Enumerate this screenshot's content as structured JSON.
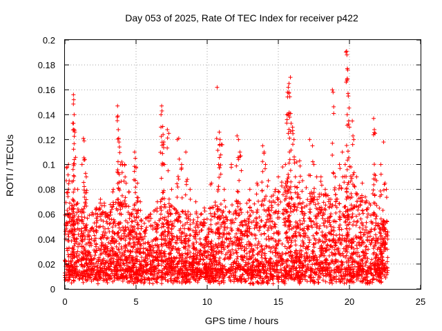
{
  "chart_data": {
    "type": "scatter",
    "title": "Day 053 of 2025, Rate Of TEC Index for receiver p422",
    "xlabel": "GPS time / hours",
    "ylabel": "ROTI / TECUs",
    "xlim": [
      0,
      25
    ],
    "ylim": [
      0,
      0.2
    ],
    "xticks": [
      "0",
      "5",
      "10",
      "15",
      "20",
      "25"
    ],
    "yticks": [
      "0",
      "0.02",
      "0.04",
      "0.06",
      "0.08",
      "0.1",
      "0.12",
      "0.14",
      "0.16",
      "0.18",
      "0.2"
    ],
    "grid": true,
    "marker": "plus",
    "color": "#ff0000",
    "time_range": [
      0,
      22.7
    ],
    "points": [
      [
        0.15,
        0.098
      ],
      [
        0.25,
        0.1
      ],
      [
        0.3,
        0.087
      ],
      [
        0.5,
        0.086
      ],
      [
        0.3,
        0.06
      ],
      [
        0.55,
        0.072
      ],
      [
        0.6,
        0.156
      ],
      [
        0.62,
        0.152
      ],
      [
        0.65,
        0.14
      ],
      [
        0.6,
        0.133
      ],
      [
        0.62,
        0.128
      ],
      [
        0.7,
        0.126
      ],
      [
        0.9,
        0.08
      ],
      [
        1.3,
        0.121
      ],
      [
        1.35,
        0.119
      ],
      [
        1.2,
        0.1
      ],
      [
        1.4,
        0.104
      ],
      [
        1.5,
        0.09
      ],
      [
        2.2,
        0.065
      ],
      [
        2.5,
        0.072
      ],
      [
        3.0,
        0.06
      ],
      [
        3.4,
        0.08
      ],
      [
        3.7,
        0.147
      ],
      [
        3.72,
        0.139
      ],
      [
        3.75,
        0.128
      ],
      [
        3.78,
        0.121
      ],
      [
        3.8,
        0.118
      ],
      [
        3.9,
        0.1
      ],
      [
        4.0,
        0.102
      ],
      [
        4.2,
        0.1
      ],
      [
        4.3,
        0.085
      ],
      [
        4.5,
        0.078
      ],
      [
        4.9,
        0.11
      ],
      [
        4.95,
        0.105
      ],
      [
        5.0,
        0.098
      ],
      [
        5.1,
        0.085
      ],
      [
        5.3,
        0.07
      ],
      [
        6.0,
        0.06
      ],
      [
        6.5,
        0.07
      ],
      [
        6.8,
        0.147
      ],
      [
        6.82,
        0.143
      ],
      [
        6.75,
        0.13
      ],
      [
        6.9,
        0.124
      ],
      [
        6.95,
        0.118
      ],
      [
        7.0,
        0.1
      ],
      [
        7.2,
        0.128
      ],
      [
        7.3,
        0.125
      ],
      [
        7.5,
        0.08
      ],
      [
        7.9,
        0.12
      ],
      [
        8.0,
        0.121
      ],
      [
        8.2,
        0.1
      ],
      [
        8.5,
        0.11
      ],
      [
        8.6,
        0.088
      ],
      [
        8.8,
        0.08
      ],
      [
        9.2,
        0.07
      ],
      [
        9.8,
        0.065
      ],
      [
        10.3,
        0.085
      ],
      [
        10.7,
        0.162
      ],
      [
        10.85,
        0.126
      ],
      [
        10.9,
        0.12
      ],
      [
        11.0,
        0.116
      ],
      [
        10.8,
        0.1
      ],
      [
        11.2,
        0.08
      ],
      [
        11.7,
        0.1
      ],
      [
        12.1,
        0.123
      ],
      [
        12.2,
        0.12
      ],
      [
        12.3,
        0.11
      ],
      [
        12.4,
        0.095
      ],
      [
        13.0,
        0.08
      ],
      [
        13.5,
        0.085
      ],
      [
        13.9,
        0.115
      ],
      [
        14.0,
        0.11
      ],
      [
        14.1,
        0.1
      ],
      [
        14.3,
        0.087
      ],
      [
        14.8,
        0.08
      ],
      [
        15.0,
        0.09
      ],
      [
        15.3,
        0.098
      ],
      [
        15.5,
        0.1
      ],
      [
        15.6,
        0.14
      ],
      [
        15.65,
        0.158
      ],
      [
        15.7,
        0.162
      ],
      [
        15.75,
        0.165
      ],
      [
        15.85,
        0.17
      ],
      [
        15.8,
        0.138
      ],
      [
        15.7,
        0.125
      ],
      [
        15.9,
        0.133
      ],
      [
        16.0,
        0.13
      ],
      [
        16.1,
        0.12
      ],
      [
        16.2,
        0.09
      ],
      [
        16.3,
        0.102
      ],
      [
        16.5,
        0.103
      ],
      [
        16.7,
        0.087
      ],
      [
        17.2,
        0.12
      ],
      [
        17.4,
        0.115
      ],
      [
        17.5,
        0.1
      ],
      [
        17.7,
        0.09
      ],
      [
        18.0,
        0.09
      ],
      [
        18.3,
        0.08
      ],
      [
        18.8,
        0.16
      ],
      [
        18.85,
        0.158
      ],
      [
        19.0,
        0.09
      ],
      [
        19.3,
        0.1
      ],
      [
        19.5,
        0.11
      ],
      [
        19.7,
        0.1
      ],
      [
        19.8,
        0.191
      ],
      [
        19.82,
        0.188
      ],
      [
        19.85,
        0.177
      ],
      [
        19.88,
        0.176
      ],
      [
        19.9,
        0.157
      ],
      [
        19.92,
        0.155
      ],
      [
        20.0,
        0.13
      ],
      [
        20.2,
        0.135
      ],
      [
        20.3,
        0.12
      ],
      [
        20.1,
        0.098
      ],
      [
        20.5,
        0.09
      ],
      [
        20.9,
        0.085
      ],
      [
        21.3,
        0.065
      ],
      [
        21.7,
        0.137
      ],
      [
        21.75,
        0.128
      ],
      [
        21.8,
        0.125
      ],
      [
        21.9,
        0.087
      ],
      [
        22.2,
        0.1
      ],
      [
        22.4,
        0.118
      ],
      [
        22.5,
        0.085
      ],
      [
        22.6,
        0.08
      ]
    ],
    "envelope": [
      [
        0,
        0.06
      ],
      [
        0.5,
        0.062
      ],
      [
        1,
        0.058
      ],
      [
        1.5,
        0.06
      ],
      [
        2,
        0.055
      ],
      [
        2.5,
        0.06
      ],
      [
        3,
        0.058
      ],
      [
        3.5,
        0.06
      ],
      [
        4,
        0.065
      ],
      [
        4.5,
        0.062
      ],
      [
        5,
        0.058
      ],
      [
        5.5,
        0.045
      ],
      [
        6,
        0.05
      ],
      [
        6.5,
        0.055
      ],
      [
        7,
        0.068
      ],
      [
        7.5,
        0.06
      ],
      [
        8,
        0.055
      ],
      [
        8.5,
        0.05
      ],
      [
        9,
        0.045
      ],
      [
        9.5,
        0.05
      ],
      [
        10,
        0.052
      ],
      [
        10.5,
        0.06
      ],
      [
        11,
        0.058
      ],
      [
        11.5,
        0.055
      ],
      [
        12,
        0.06
      ],
      [
        12.5,
        0.06
      ],
      [
        13,
        0.058
      ],
      [
        13.5,
        0.062
      ],
      [
        14,
        0.068
      ],
      [
        14.5,
        0.065
      ],
      [
        15,
        0.07
      ],
      [
        15.5,
        0.072
      ],
      [
        16,
        0.075
      ],
      [
        16.5,
        0.07
      ],
      [
        17,
        0.072
      ],
      [
        17.5,
        0.07
      ],
      [
        18,
        0.068
      ],
      [
        18.5,
        0.065
      ],
      [
        19,
        0.07
      ],
      [
        19.5,
        0.075
      ],
      [
        20,
        0.078
      ],
      [
        20.5,
        0.07
      ],
      [
        21,
        0.065
      ],
      [
        21.5,
        0.06
      ],
      [
        22,
        0.058
      ],
      [
        22.7,
        0.045
      ]
    ]
  }
}
